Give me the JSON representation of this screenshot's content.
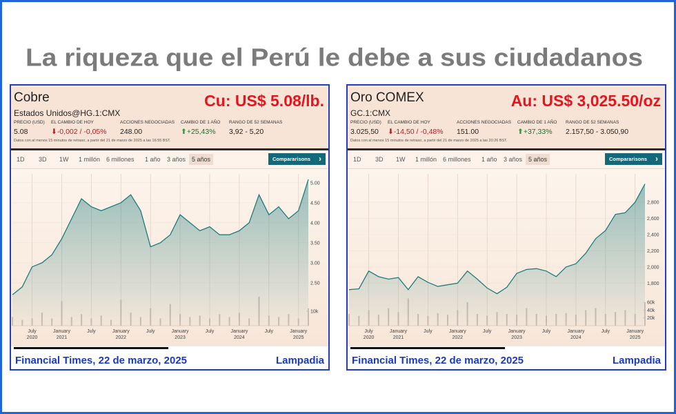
{
  "title": "La riqueza que el Perú le debe a sus ciudadanos",
  "panels": [
    {
      "name": "Cobre",
      "headline": "Cu: US$ 5.08/lb.",
      "ticker": "Estados Unidos@HG.1:CMX",
      "stats": [
        {
          "label": "PRECIO (USD)",
          "value": "5.08"
        },
        {
          "label": "EL CAMBIO DE HOY",
          "value": "-0,002 / -0,05%"
        },
        {
          "label": "ACCIONES NEGOCIADAS",
          "value": "248.00"
        },
        {
          "label": "CAMBIO DE 1 AÑO",
          "value": "+25,43%"
        },
        {
          "label": "RANGO DE 52 SEMANAS",
          "value": "3,92 - 5,20"
        }
      ],
      "note": "Datos con al menos 15 minutos de retraso, a partir del 21 de marzo de 2025 a las 16:55 BST.",
      "range_buttons": [
        "1D",
        "3D",
        "1W",
        "1 millón",
        "6 millones",
        "1 año",
        "3 años",
        "5 años"
      ],
      "compare": "Compararisons",
      "footer": {
        "source": "Financial Times, 22 de marzo, 2025",
        "brand": "Lampadia"
      }
    },
    {
      "name": "Oro COMEX",
      "headline": "Au: US$ 3,025.50/oz",
      "ticker": "GC.1:CMX",
      "stats": [
        {
          "label": "PRECIO (USD)",
          "value": "3.025,50"
        },
        {
          "label": "EL CAMBIO DE HOY",
          "value": "-14,50 / -0,48%"
        },
        {
          "label": "ACCIONES NEGOCIADAS",
          "value": "151.00"
        },
        {
          "label": "CAMBIO DE 1 AÑO",
          "value": "+37,33%"
        },
        {
          "label": "RANGO DE 52 SEMANAS",
          "value": "2.157,50 - 3.050,90"
        }
      ],
      "note": "Datos con al menos 15 minutos de retraso, a partir del 21 de marzo de 2025 a las 20:26 BST.",
      "range_buttons": [
        "1D",
        "3D",
        "1W",
        "1 millón",
        "6 millones",
        "1 año",
        "3 años",
        "5 años"
      ],
      "compare": "Compararisons",
      "footer": {
        "source": "Financial Times, 22 de marzo, 2025",
        "brand": "Lampadia"
      }
    }
  ],
  "chart_data": [
    {
      "type": "line",
      "x": [
        "2020-03",
        "2020-05",
        "2020-07",
        "2020-09",
        "2020-11",
        "2021-01",
        "2021-03",
        "2021-05",
        "2021-07",
        "2021-09",
        "2021-11",
        "2022-01",
        "2022-03",
        "2022-05",
        "2022-07",
        "2022-09",
        "2022-11",
        "2023-01",
        "2023-03",
        "2023-05",
        "2023-07",
        "2023-09",
        "2023-11",
        "2024-01",
        "2024-03",
        "2024-05",
        "2024-07",
        "2024-09",
        "2024-11",
        "2025-01",
        "2025-03"
      ],
      "series": [
        {
          "color": "#1f7b7d",
          "values": [
            2.2,
            2.4,
            2.9,
            3.0,
            3.2,
            3.6,
            4.1,
            4.6,
            4.4,
            4.3,
            4.4,
            4.5,
            4.7,
            4.3,
            3.4,
            3.5,
            3.7,
            4.2,
            4.0,
            3.8,
            3.9,
            3.7,
            3.7,
            3.8,
            4.0,
            4.7,
            4.2,
            4.4,
            4.1,
            4.3,
            5.08
          ]
        },
        {
          "type": "bar",
          "axis": "y2",
          "color": "#cdbdb2",
          "values": [
            6000,
            4000,
            5000,
            9000,
            5000,
            17000,
            6000,
            8000,
            5000,
            7000,
            4000,
            18000,
            9000,
            6000,
            12000,
            5000,
            15000,
            8000,
            6000,
            7000,
            5000,
            8000,
            6000,
            9000,
            5000,
            20000,
            7000,
            6000,
            8000,
            5000,
            12000
          ]
        }
      ],
      "xlim": [
        "2020-03",
        "2025-03"
      ],
      "xticks": [
        {
          "value": "2020-07",
          "label": "July 2020"
        },
        {
          "value": "2021-01",
          "label": "January 2021"
        },
        {
          "value": "2021-07",
          "label": "July"
        },
        {
          "value": "2022-01",
          "label": "January 2022"
        },
        {
          "value": "2022-07",
          "label": "July"
        },
        {
          "value": "2023-01",
          "label": "January 2023"
        },
        {
          "value": "2023-07",
          "label": "July"
        },
        {
          "value": "2024-01",
          "label": "January 2024"
        },
        {
          "value": "2024-07",
          "label": "July"
        },
        {
          "value": "2025-01",
          "label": "January 2025"
        }
      ],
      "ylim": [
        1.43,
        5.22
      ],
      "yticks": [
        {
          "value": 2.5,
          "label": "2.50"
        },
        {
          "value": 3,
          "label": "3.00"
        },
        {
          "value": 3.5,
          "label": "3.50"
        },
        {
          "value": 4,
          "label": "4.00"
        },
        {
          "value": 4.5,
          "label": "4.50"
        },
        {
          "value": 5,
          "label": "5.00"
        }
      ],
      "y2lim": [
        0,
        105000
      ],
      "y2ticks": [
        {
          "value": 10000,
          "label": "10k"
        }
      ],
      "grid": true
    },
    {
      "type": "line",
      "x": [
        "2020-03",
        "2020-05",
        "2020-07",
        "2020-09",
        "2020-11",
        "2021-01",
        "2021-03",
        "2021-05",
        "2021-07",
        "2021-09",
        "2021-11",
        "2022-01",
        "2022-03",
        "2022-05",
        "2022-07",
        "2022-09",
        "2022-11",
        "2023-01",
        "2023-03",
        "2023-05",
        "2023-07",
        "2023-09",
        "2023-11",
        "2024-01",
        "2024-03",
        "2024-05",
        "2024-07",
        "2024-09",
        "2024-11",
        "2025-01",
        "2025-03"
      ],
      "series": [
        {
          "color": "#1f7b7d",
          "values": [
            1720,
            1730,
            1950,
            1880,
            1850,
            1870,
            1720,
            1880,
            1810,
            1760,
            1780,
            1800,
            1950,
            1850,
            1740,
            1670,
            1750,
            1920,
            1970,
            1980,
            1950,
            1880,
            2000,
            2040,
            2170,
            2350,
            2450,
            2650,
            2670,
            2800,
            3025.5
          ]
        },
        {
          "type": "bar",
          "axis": "y2",
          "color": "#cdbdb2",
          "values": [
            30000,
            25000,
            40000,
            28000,
            45000,
            35000,
            70000,
            30000,
            25000,
            32000,
            28000,
            40000,
            60000,
            30000,
            26000,
            35000,
            30000,
            28000,
            45000,
            30000,
            26000,
            30000,
            32000,
            28000,
            40000,
            45000,
            30000,
            35000,
            40000,
            30000,
            60000
          ]
        }
      ],
      "xlim": [
        "2020-03",
        "2025-03"
      ],
      "xticks": [
        {
          "value": "2020-07",
          "label": "July 2020"
        },
        {
          "value": "2021-01",
          "label": "January 2021"
        },
        {
          "value": "2021-07",
          "label": "July"
        },
        {
          "value": "2022-01",
          "label": "January 2022"
        },
        {
          "value": "2022-07",
          "label": "July"
        },
        {
          "value": "2023-01",
          "label": "January 2023"
        },
        {
          "value": "2023-07",
          "label": "July"
        },
        {
          "value": "2024-01",
          "label": "January 2024"
        },
        {
          "value": "2024-07",
          "label": "July"
        },
        {
          "value": "2025-01",
          "label": "January 2025"
        }
      ],
      "ylim": [
        1275,
        3150
      ],
      "yticks": [
        {
          "value": 1800,
          "label": "1,800"
        },
        {
          "value": 2000,
          "label": "2,000"
        },
        {
          "value": 2200,
          "label": "2,200"
        },
        {
          "value": 2400,
          "label": "2,400"
        },
        {
          "value": 2600,
          "label": "2,600"
        },
        {
          "value": 2800,
          "label": "2,800"
        }
      ],
      "y2lim": [
        0,
        390000
      ],
      "y2ticks": [
        {
          "value": 20000,
          "label": "20k"
        },
        {
          "value": 40000,
          "label": "40k"
        },
        {
          "value": 60000,
          "label": "60k"
        }
      ],
      "grid": true
    }
  ]
}
